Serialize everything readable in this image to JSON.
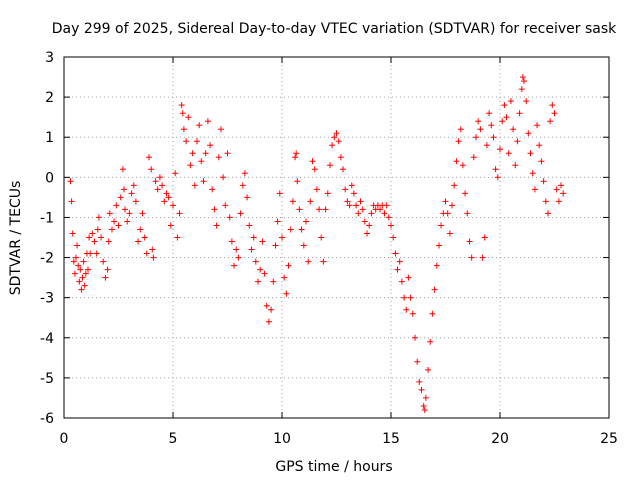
{
  "chart_data": {
    "type": "scatter",
    "title": "Day 299 of 2025, Sidereal Day-to-day VTEC variation (SDTVAR) for receiver sask",
    "xlabel": "GPS time / hours",
    "ylabel": "SDTVAR / TECUs",
    "xlim": [
      0,
      25
    ],
    "ylim": [
      -6,
      3
    ],
    "xticks": [
      0,
      5,
      10,
      15,
      20,
      25
    ],
    "yticks": [
      3,
      2,
      1,
      0,
      -1,
      -2,
      -3,
      -4,
      -5,
      -6
    ],
    "xtick_labels": [
      "0",
      "5",
      "10",
      "15",
      "20",
      "25"
    ],
    "ytick_labels": [
      "3",
      "2",
      "1",
      "0",
      "-1",
      "-2",
      "-3",
      "-4",
      "-5",
      "-6"
    ],
    "grid": true,
    "marker": "+",
    "color": "#ff0000",
    "series": [
      {
        "name": "sask",
        "points": [
          [
            0.3,
            -0.1
          ],
          [
            0.35,
            -0.6
          ],
          [
            0.4,
            -1.4
          ],
          [
            0.45,
            -2.1
          ],
          [
            0.5,
            -2.4
          ],
          [
            0.55,
            -2.0
          ],
          [
            0.6,
            -1.7
          ],
          [
            0.65,
            -2.2
          ],
          [
            0.7,
            -2.6
          ],
          [
            0.75,
            -2.3
          ],
          [
            0.8,
            -2.8
          ],
          [
            0.85,
            -2.5
          ],
          [
            0.9,
            -2.1
          ],
          [
            0.95,
            -2.7
          ],
          [
            1.0,
            -2.4
          ],
          [
            1.05,
            -1.9
          ],
          [
            1.1,
            -2.3
          ],
          [
            1.15,
            -1.5
          ],
          [
            1.2,
            -1.9
          ],
          [
            1.3,
            -1.4
          ],
          [
            1.4,
            -1.6
          ],
          [
            1.5,
            -1.9
          ],
          [
            1.55,
            -1.3
          ],
          [
            1.6,
            -1.0
          ],
          [
            1.7,
            -1.5
          ],
          [
            1.8,
            -2.1
          ],
          [
            1.9,
            -2.5
          ],
          [
            2.0,
            -2.3
          ],
          [
            2.05,
            -1.6
          ],
          [
            2.1,
            -0.9
          ],
          [
            2.2,
            -1.3
          ],
          [
            2.3,
            -1.1
          ],
          [
            2.4,
            -0.7
          ],
          [
            2.5,
            -1.2
          ],
          [
            2.6,
            -0.5
          ],
          [
            2.7,
            0.2
          ],
          [
            2.75,
            -0.3
          ],
          [
            2.8,
            -0.8
          ],
          [
            2.9,
            -1.1
          ],
          [
            3.0,
            -0.9
          ],
          [
            3.1,
            -0.4
          ],
          [
            3.2,
            -0.2
          ],
          [
            3.3,
            -0.6
          ],
          [
            3.4,
            -1.6
          ],
          [
            3.5,
            -1.3
          ],
          [
            3.6,
            -0.9
          ],
          [
            3.7,
            -1.5
          ],
          [
            3.8,
            -1.9
          ],
          [
            3.9,
            0.5
          ],
          [
            4.0,
            0.2
          ],
          [
            4.05,
            -1.8
          ],
          [
            4.1,
            -2.0
          ],
          [
            4.2,
            -0.1
          ],
          [
            4.3,
            -0.3
          ],
          [
            4.4,
            0.0
          ],
          [
            4.5,
            -0.2
          ],
          [
            4.6,
            -0.6
          ],
          [
            4.7,
            -0.4
          ],
          [
            4.8,
            -0.5
          ],
          [
            4.9,
            -1.2
          ],
          [
            5.0,
            -0.7
          ],
          [
            5.1,
            0.1
          ],
          [
            5.2,
            -1.5
          ],
          [
            5.3,
            -0.9
          ],
          [
            5.4,
            1.8
          ],
          [
            5.45,
            1.6
          ],
          [
            5.5,
            1.2
          ],
          [
            5.6,
            0.9
          ],
          [
            5.7,
            1.5
          ],
          [
            5.8,
            0.3
          ],
          [
            5.9,
            0.6
          ],
          [
            6.0,
            -0.2
          ],
          [
            6.1,
            0.9
          ],
          [
            6.2,
            1.3
          ],
          [
            6.3,
            0.4
          ],
          [
            6.4,
            -0.1
          ],
          [
            6.5,
            0.6
          ],
          [
            6.6,
            1.4
          ],
          [
            6.7,
            0.8
          ],
          [
            6.8,
            -0.3
          ],
          [
            6.9,
            -0.8
          ],
          [
            7.0,
            -1.2
          ],
          [
            7.1,
            0.5
          ],
          [
            7.2,
            1.2
          ],
          [
            7.3,
            0.0
          ],
          [
            7.4,
            -0.7
          ],
          [
            7.5,
            0.6
          ],
          [
            7.6,
            -1.0
          ],
          [
            7.7,
            -1.6
          ],
          [
            7.8,
            -2.2
          ],
          [
            7.9,
            -1.8
          ],
          [
            8.0,
            -2.0
          ],
          [
            8.1,
            -0.9
          ],
          [
            8.2,
            -0.2
          ],
          [
            8.3,
            0.1
          ],
          [
            8.4,
            -0.5
          ],
          [
            8.5,
            -1.2
          ],
          [
            8.6,
            -1.8
          ],
          [
            8.7,
            -1.5
          ],
          [
            8.8,
            -2.1
          ],
          [
            8.9,
            -2.6
          ],
          [
            9.0,
            -2.3
          ],
          [
            9.1,
            -1.6
          ],
          [
            9.2,
            -2.4
          ],
          [
            9.3,
            -3.2
          ],
          [
            9.4,
            -3.6
          ],
          [
            9.5,
            -3.3
          ],
          [
            9.6,
            -2.6
          ],
          [
            9.7,
            -1.7
          ],
          [
            9.8,
            -1.1
          ],
          [
            9.9,
            -0.4
          ],
          [
            10.0,
            -1.5
          ],
          [
            10.1,
            -2.5
          ],
          [
            10.2,
            -2.9
          ],
          [
            10.3,
            -2.2
          ],
          [
            10.4,
            -1.3
          ],
          [
            10.5,
            -0.6
          ],
          [
            10.6,
            0.5
          ],
          [
            10.65,
            0.6
          ],
          [
            10.7,
            -0.1
          ],
          [
            10.8,
            -0.8
          ],
          [
            10.9,
            -1.3
          ],
          [
            11.0,
            -1.7
          ],
          [
            11.1,
            -1.1
          ],
          [
            11.2,
            -2.1
          ],
          [
            11.3,
            -0.6
          ],
          [
            11.4,
            0.4
          ],
          [
            11.5,
            0.2
          ],
          [
            11.6,
            -0.3
          ],
          [
            11.7,
            -0.8
          ],
          [
            11.8,
            -1.5
          ],
          [
            11.9,
            -2.1
          ],
          [
            12.0,
            -0.8
          ],
          [
            12.1,
            -0.4
          ],
          [
            12.2,
            0.3
          ],
          [
            12.3,
            0.8
          ],
          [
            12.4,
            1.0
          ],
          [
            12.5,
            1.1
          ],
          [
            12.6,
            0.9
          ],
          [
            12.7,
            0.5
          ],
          [
            12.8,
            0.2
          ],
          [
            12.9,
            -0.3
          ],
          [
            13.0,
            -0.6
          ],
          [
            13.1,
            -0.7
          ],
          [
            13.2,
            -0.2
          ],
          [
            13.3,
            -0.4
          ],
          [
            13.4,
            -0.7
          ],
          [
            13.5,
            -0.9
          ],
          [
            13.6,
            -0.6
          ],
          [
            13.7,
            -0.8
          ],
          [
            13.8,
            -1.1
          ],
          [
            13.9,
            -1.4
          ],
          [
            14.0,
            -1.2
          ],
          [
            14.1,
            -0.9
          ],
          [
            14.2,
            -0.7
          ],
          [
            14.3,
            -0.8
          ],
          [
            14.4,
            -0.7
          ],
          [
            14.5,
            -0.8
          ],
          [
            14.6,
            -0.7
          ],
          [
            14.7,
            -0.9
          ],
          [
            14.8,
            -0.7
          ],
          [
            14.9,
            -1.0
          ],
          [
            15.0,
            -1.2
          ],
          [
            15.1,
            -1.5
          ],
          [
            15.2,
            -1.9
          ],
          [
            15.3,
            -2.3
          ],
          [
            15.4,
            -2.1
          ],
          [
            15.5,
            -2.6
          ],
          [
            15.6,
            -3.0
          ],
          [
            15.7,
            -3.3
          ],
          [
            15.8,
            -2.5
          ],
          [
            15.9,
            -3.0
          ],
          [
            16.0,
            -3.4
          ],
          [
            16.1,
            -4.0
          ],
          [
            16.2,
            -4.6
          ],
          [
            16.3,
            -5.1
          ],
          [
            16.4,
            -5.3
          ],
          [
            16.5,
            -5.7
          ],
          [
            16.55,
            -5.8
          ],
          [
            16.6,
            -5.5
          ],
          [
            16.7,
            -4.8
          ],
          [
            16.8,
            -4.1
          ],
          [
            16.9,
            -3.4
          ],
          [
            17.0,
            -2.8
          ],
          [
            17.1,
            -2.2
          ],
          [
            17.2,
            -1.7
          ],
          [
            17.3,
            -1.2
          ],
          [
            17.4,
            -0.9
          ],
          [
            17.5,
            -0.6
          ],
          [
            17.6,
            -0.9
          ],
          [
            17.7,
            -1.4
          ],
          [
            17.8,
            -0.7
          ],
          [
            17.9,
            -0.2
          ],
          [
            18.0,
            0.4
          ],
          [
            18.1,
            0.9
          ],
          [
            18.2,
            1.2
          ],
          [
            18.3,
            0.3
          ],
          [
            18.4,
            -0.4
          ],
          [
            18.5,
            -0.9
          ],
          [
            18.6,
            -1.6
          ],
          [
            18.7,
            -2.0
          ],
          [
            18.8,
            0.5
          ],
          [
            18.9,
            1.0
          ],
          [
            19.0,
            1.4
          ],
          [
            19.1,
            1.2
          ],
          [
            19.2,
            -2.0
          ],
          [
            19.3,
            -1.5
          ],
          [
            19.4,
            0.8
          ],
          [
            19.5,
            1.6
          ],
          [
            19.6,
            1.3
          ],
          [
            19.7,
            1.0
          ],
          [
            19.8,
            0.2
          ],
          [
            19.9,
            0.0
          ],
          [
            20.0,
            0.7
          ],
          [
            20.1,
            1.4
          ],
          [
            20.2,
            1.8
          ],
          [
            20.3,
            1.5
          ],
          [
            20.4,
            0.6
          ],
          [
            20.5,
            1.9
          ],
          [
            20.6,
            1.2
          ],
          [
            20.7,
            0.3
          ],
          [
            20.8,
            0.9
          ],
          [
            20.9,
            1.6
          ],
          [
            21.0,
            2.2
          ],
          [
            21.05,
            2.5
          ],
          [
            21.1,
            2.4
          ],
          [
            21.2,
            1.9
          ],
          [
            21.3,
            1.1
          ],
          [
            21.4,
            0.6
          ],
          [
            21.5,
            0.1
          ],
          [
            21.6,
            -0.3
          ],
          [
            21.7,
            1.3
          ],
          [
            21.8,
            0.8
          ],
          [
            21.9,
            0.4
          ],
          [
            22.0,
            -0.1
          ],
          [
            22.1,
            -0.6
          ],
          [
            22.2,
            -0.9
          ],
          [
            22.3,
            1.4
          ],
          [
            22.4,
            1.8
          ],
          [
            22.5,
            1.6
          ],
          [
            22.6,
            -0.3
          ],
          [
            22.7,
            -0.6
          ],
          [
            22.8,
            -0.2
          ],
          [
            22.9,
            -0.4
          ]
        ]
      }
    ]
  }
}
